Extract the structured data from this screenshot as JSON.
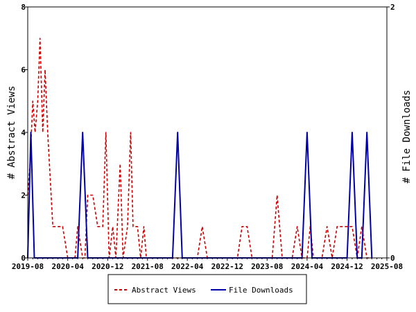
{
  "chart_data": {
    "type": "line",
    "ylabel_left": "# Abstract Views",
    "ylabel_right": "# File Downloads",
    "x_ticks": [
      "2019-08",
      "2020-04",
      "2020-12",
      "2021-08",
      "2022-04",
      "2022-12",
      "2023-08",
      "2024-04",
      "2024-12",
      "2025-08"
    ],
    "x_range": [
      "2019-08-01",
      "2025-08-01"
    ],
    "ylim_left": [
      0,
      8
    ],
    "ylim_right": [
      0,
      2
    ],
    "yticks_left": [
      "0",
      "2",
      "4",
      "6",
      "8"
    ],
    "yticks_right": [
      "0",
      "2"
    ],
    "grid": false,
    "legend_position": "bottom",
    "series": [
      {
        "name": "Abstract Views",
        "axis": "left",
        "color": "#cc0000",
        "style": "dashed",
        "points": [
          [
            "2019-08-01",
            2
          ],
          [
            "2019-08-15",
            3
          ],
          [
            "2019-09-01",
            5
          ],
          [
            "2019-09-15",
            4
          ],
          [
            "2019-10-01",
            5
          ],
          [
            "2019-10-15",
            7
          ],
          [
            "2019-11-01",
            4
          ],
          [
            "2019-11-15",
            6
          ],
          [
            "2019-12-01",
            4
          ],
          [
            "2020-01-01",
            1
          ],
          [
            "2020-02-01",
            1
          ],
          [
            "2020-03-01",
            1
          ],
          [
            "2020-04-01",
            0
          ],
          [
            "2020-04-15",
            0
          ],
          [
            "2020-05-01",
            0
          ],
          [
            "2020-05-15",
            0
          ],
          [
            "2020-06-01",
            1
          ],
          [
            "2020-07-01",
            0
          ],
          [
            "2020-07-15",
            0
          ],
          [
            "2020-08-01",
            2
          ],
          [
            "2020-09-01",
            2
          ],
          [
            "2020-10-01",
            1
          ],
          [
            "2020-11-01",
            1
          ],
          [
            "2020-11-20",
            4
          ],
          [
            "2020-12-10",
            0
          ],
          [
            "2021-01-01",
            1
          ],
          [
            "2021-01-20",
            0
          ],
          [
            "2021-02-15",
            3
          ],
          [
            "2021-03-05",
            0
          ],
          [
            "2021-04-01",
            1
          ],
          [
            "2021-04-20",
            4
          ],
          [
            "2021-05-05",
            1
          ],
          [
            "2021-06-01",
            1
          ],
          [
            "2021-06-20",
            0
          ],
          [
            "2021-07-10",
            1
          ],
          [
            "2021-07-25",
            0
          ],
          [
            "2021-08-01",
            0
          ],
          [
            "2021-09-01",
            0
          ],
          [
            "2021-10-01",
            0
          ],
          [
            "2021-11-01",
            0
          ],
          [
            "2021-12-01",
            0
          ],
          [
            "2022-01-01",
            0
          ],
          [
            "2022-02-01",
            0
          ],
          [
            "2022-03-01",
            0
          ],
          [
            "2022-04-01",
            0
          ],
          [
            "2022-05-01",
            0
          ],
          [
            "2022-06-01",
            0
          ],
          [
            "2022-07-01",
            1
          ],
          [
            "2022-08-01",
            0
          ],
          [
            "2022-09-01",
            0
          ],
          [
            "2022-10-01",
            0
          ],
          [
            "2022-11-01",
            0
          ],
          [
            "2022-12-01",
            0
          ],
          [
            "2023-01-01",
            0
          ],
          [
            "2023-02-01",
            0
          ],
          [
            "2023-03-01",
            1
          ],
          [
            "2023-04-01",
            1
          ],
          [
            "2023-05-01",
            0
          ],
          [
            "2023-06-01",
            0
          ],
          [
            "2023-07-01",
            0
          ],
          [
            "2023-08-01",
            0
          ],
          [
            "2023-09-01",
            0
          ],
          [
            "2023-10-01",
            2
          ],
          [
            "2023-11-01",
            0
          ],
          [
            "2023-12-01",
            0
          ],
          [
            "2024-01-01",
            0
          ],
          [
            "2024-02-01",
            1
          ],
          [
            "2024-03-01",
            0
          ],
          [
            "2024-04-01",
            0
          ],
          [
            "2024-04-20",
            1
          ],
          [
            "2024-05-10",
            0
          ],
          [
            "2024-06-01",
            0
          ],
          [
            "2024-07-01",
            0
          ],
          [
            "2024-08-01",
            1
          ],
          [
            "2024-09-01",
            0
          ],
          [
            "2024-10-01",
            1
          ],
          [
            "2024-11-01",
            1
          ],
          [
            "2024-12-01",
            1
          ],
          [
            "2025-01-01",
            1
          ],
          [
            "2025-02-01",
            0
          ],
          [
            "2025-03-01",
            1
          ],
          [
            "2025-04-01",
            0
          ],
          [
            "2025-05-01",
            0
          ]
        ]
      },
      {
        "name": "File Downloads",
        "axis": "right",
        "color": "#0000aa",
        "style": "solid",
        "points": [
          [
            "2019-08-01",
            0
          ],
          [
            "2019-08-20",
            1
          ],
          [
            "2019-09-10",
            0
          ],
          [
            "2019-10-01",
            0
          ],
          [
            "2020-01-01",
            0
          ],
          [
            "2020-04-01",
            0
          ],
          [
            "2020-06-01",
            0
          ],
          [
            "2020-07-01",
            1
          ],
          [
            "2020-08-01",
            0
          ],
          [
            "2020-12-01",
            0
          ],
          [
            "2021-06-01",
            0
          ],
          [
            "2022-01-01",
            0
          ],
          [
            "2022-02-01",
            1
          ],
          [
            "2022-03-01",
            0
          ],
          [
            "2022-12-01",
            0
          ],
          [
            "2023-08-01",
            0
          ],
          [
            "2024-03-01",
            0
          ],
          [
            "2024-04-01",
            1
          ],
          [
            "2024-05-01",
            0
          ],
          [
            "2024-12-01",
            0
          ],
          [
            "2025-01-01",
            1
          ],
          [
            "2025-02-01",
            0
          ],
          [
            "2025-03-01",
            0
          ],
          [
            "2025-04-01",
            1
          ],
          [
            "2025-05-01",
            0
          ]
        ]
      }
    ]
  }
}
